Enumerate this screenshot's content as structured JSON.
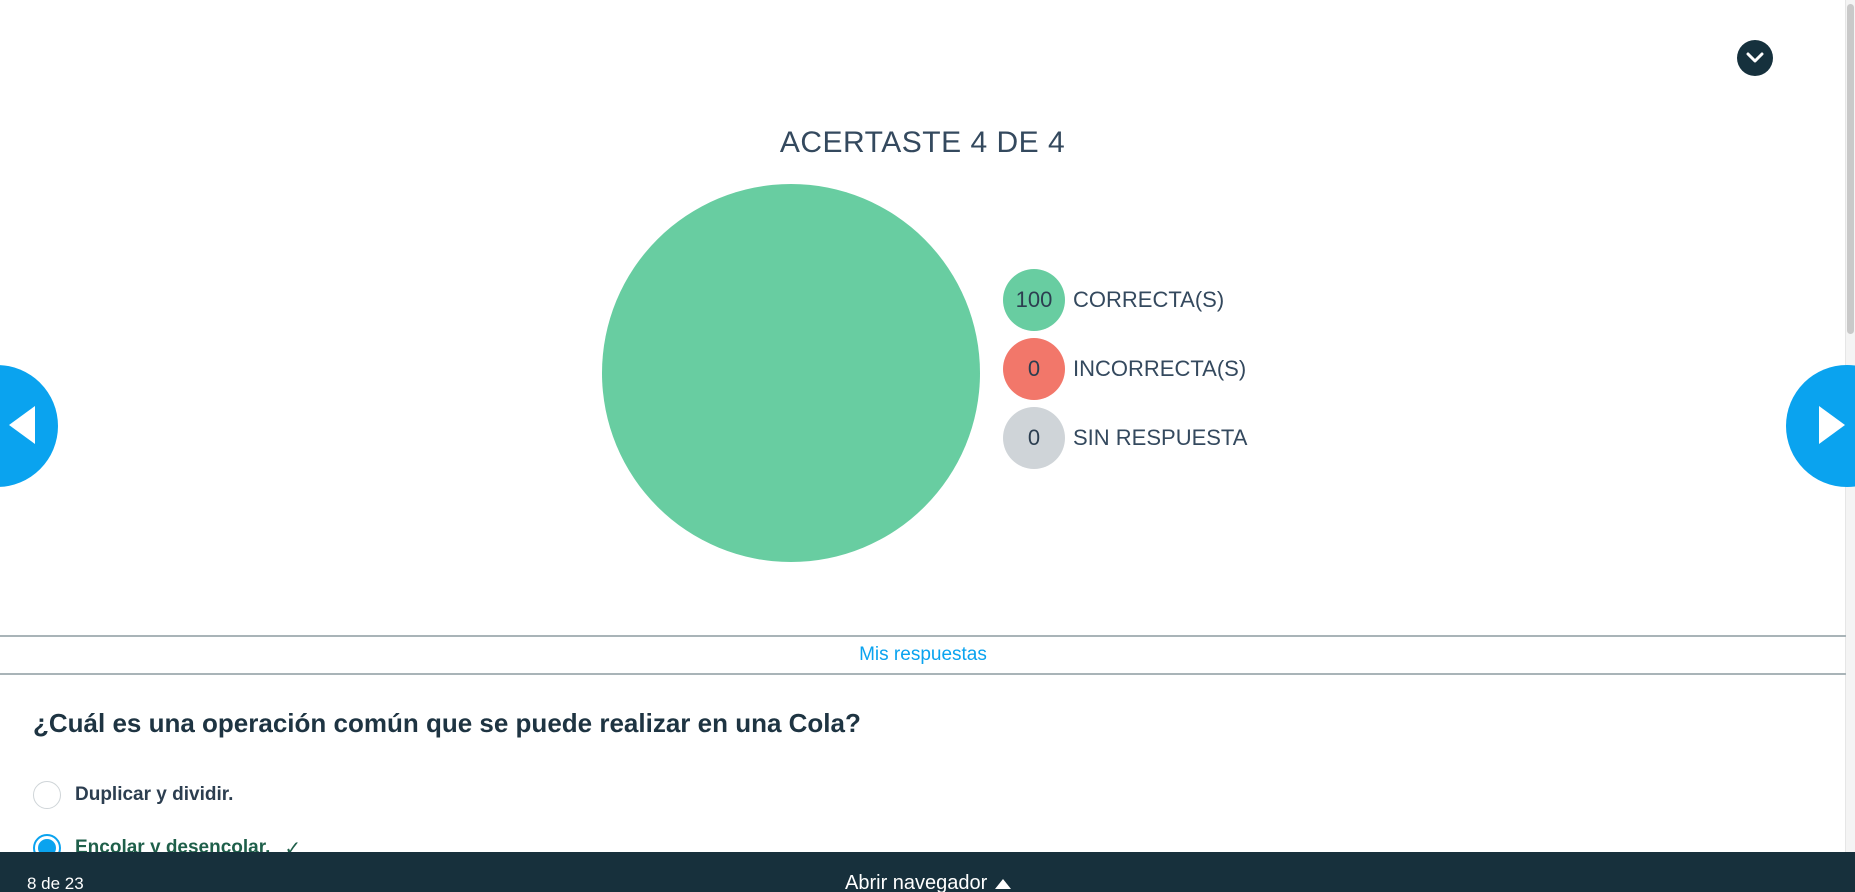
{
  "colors": {
    "correct": "#68cda1",
    "incorrect": "#f2776a",
    "unanswered": "#cfd4d8",
    "accent": "#0aa3ef",
    "dark": "#17303c"
  },
  "header": {
    "collapse_icon": "chevron-down-icon"
  },
  "chart_data": {
    "type": "pie",
    "title": "ACERTASTE 4 DE 4",
    "categories": [
      "CORRECTA(S)",
      "INCORRECTA(S)",
      "SIN RESPUESTA"
    ],
    "values": [
      100,
      0,
      0
    ],
    "legend_position": "right"
  },
  "legend": [
    {
      "value": "100",
      "label": "CORRECTA(S)",
      "color": "#68cda1"
    },
    {
      "value": "0",
      "label": "INCORRECTA(S)",
      "color": "#f2776a"
    },
    {
      "value": "0",
      "label": "SIN RESPUESTA",
      "color": "#cfd4d8"
    }
  ],
  "nav": {
    "prev_icon": "arrow-left-icon",
    "next_icon": "arrow-right-icon"
  },
  "tabs": {
    "my_answers": "Mis respuestas"
  },
  "question": {
    "text": "¿Cuál es una operación común que se puede realizar en una Cola?",
    "options": [
      {
        "label": "Duplicar y dividir.",
        "selected": false
      },
      {
        "label": "Encolar y desencolar.",
        "selected": true,
        "check": "✓"
      }
    ]
  },
  "footer": {
    "page_count": "8 de 23",
    "open_navigator": "Abrir navegador"
  }
}
